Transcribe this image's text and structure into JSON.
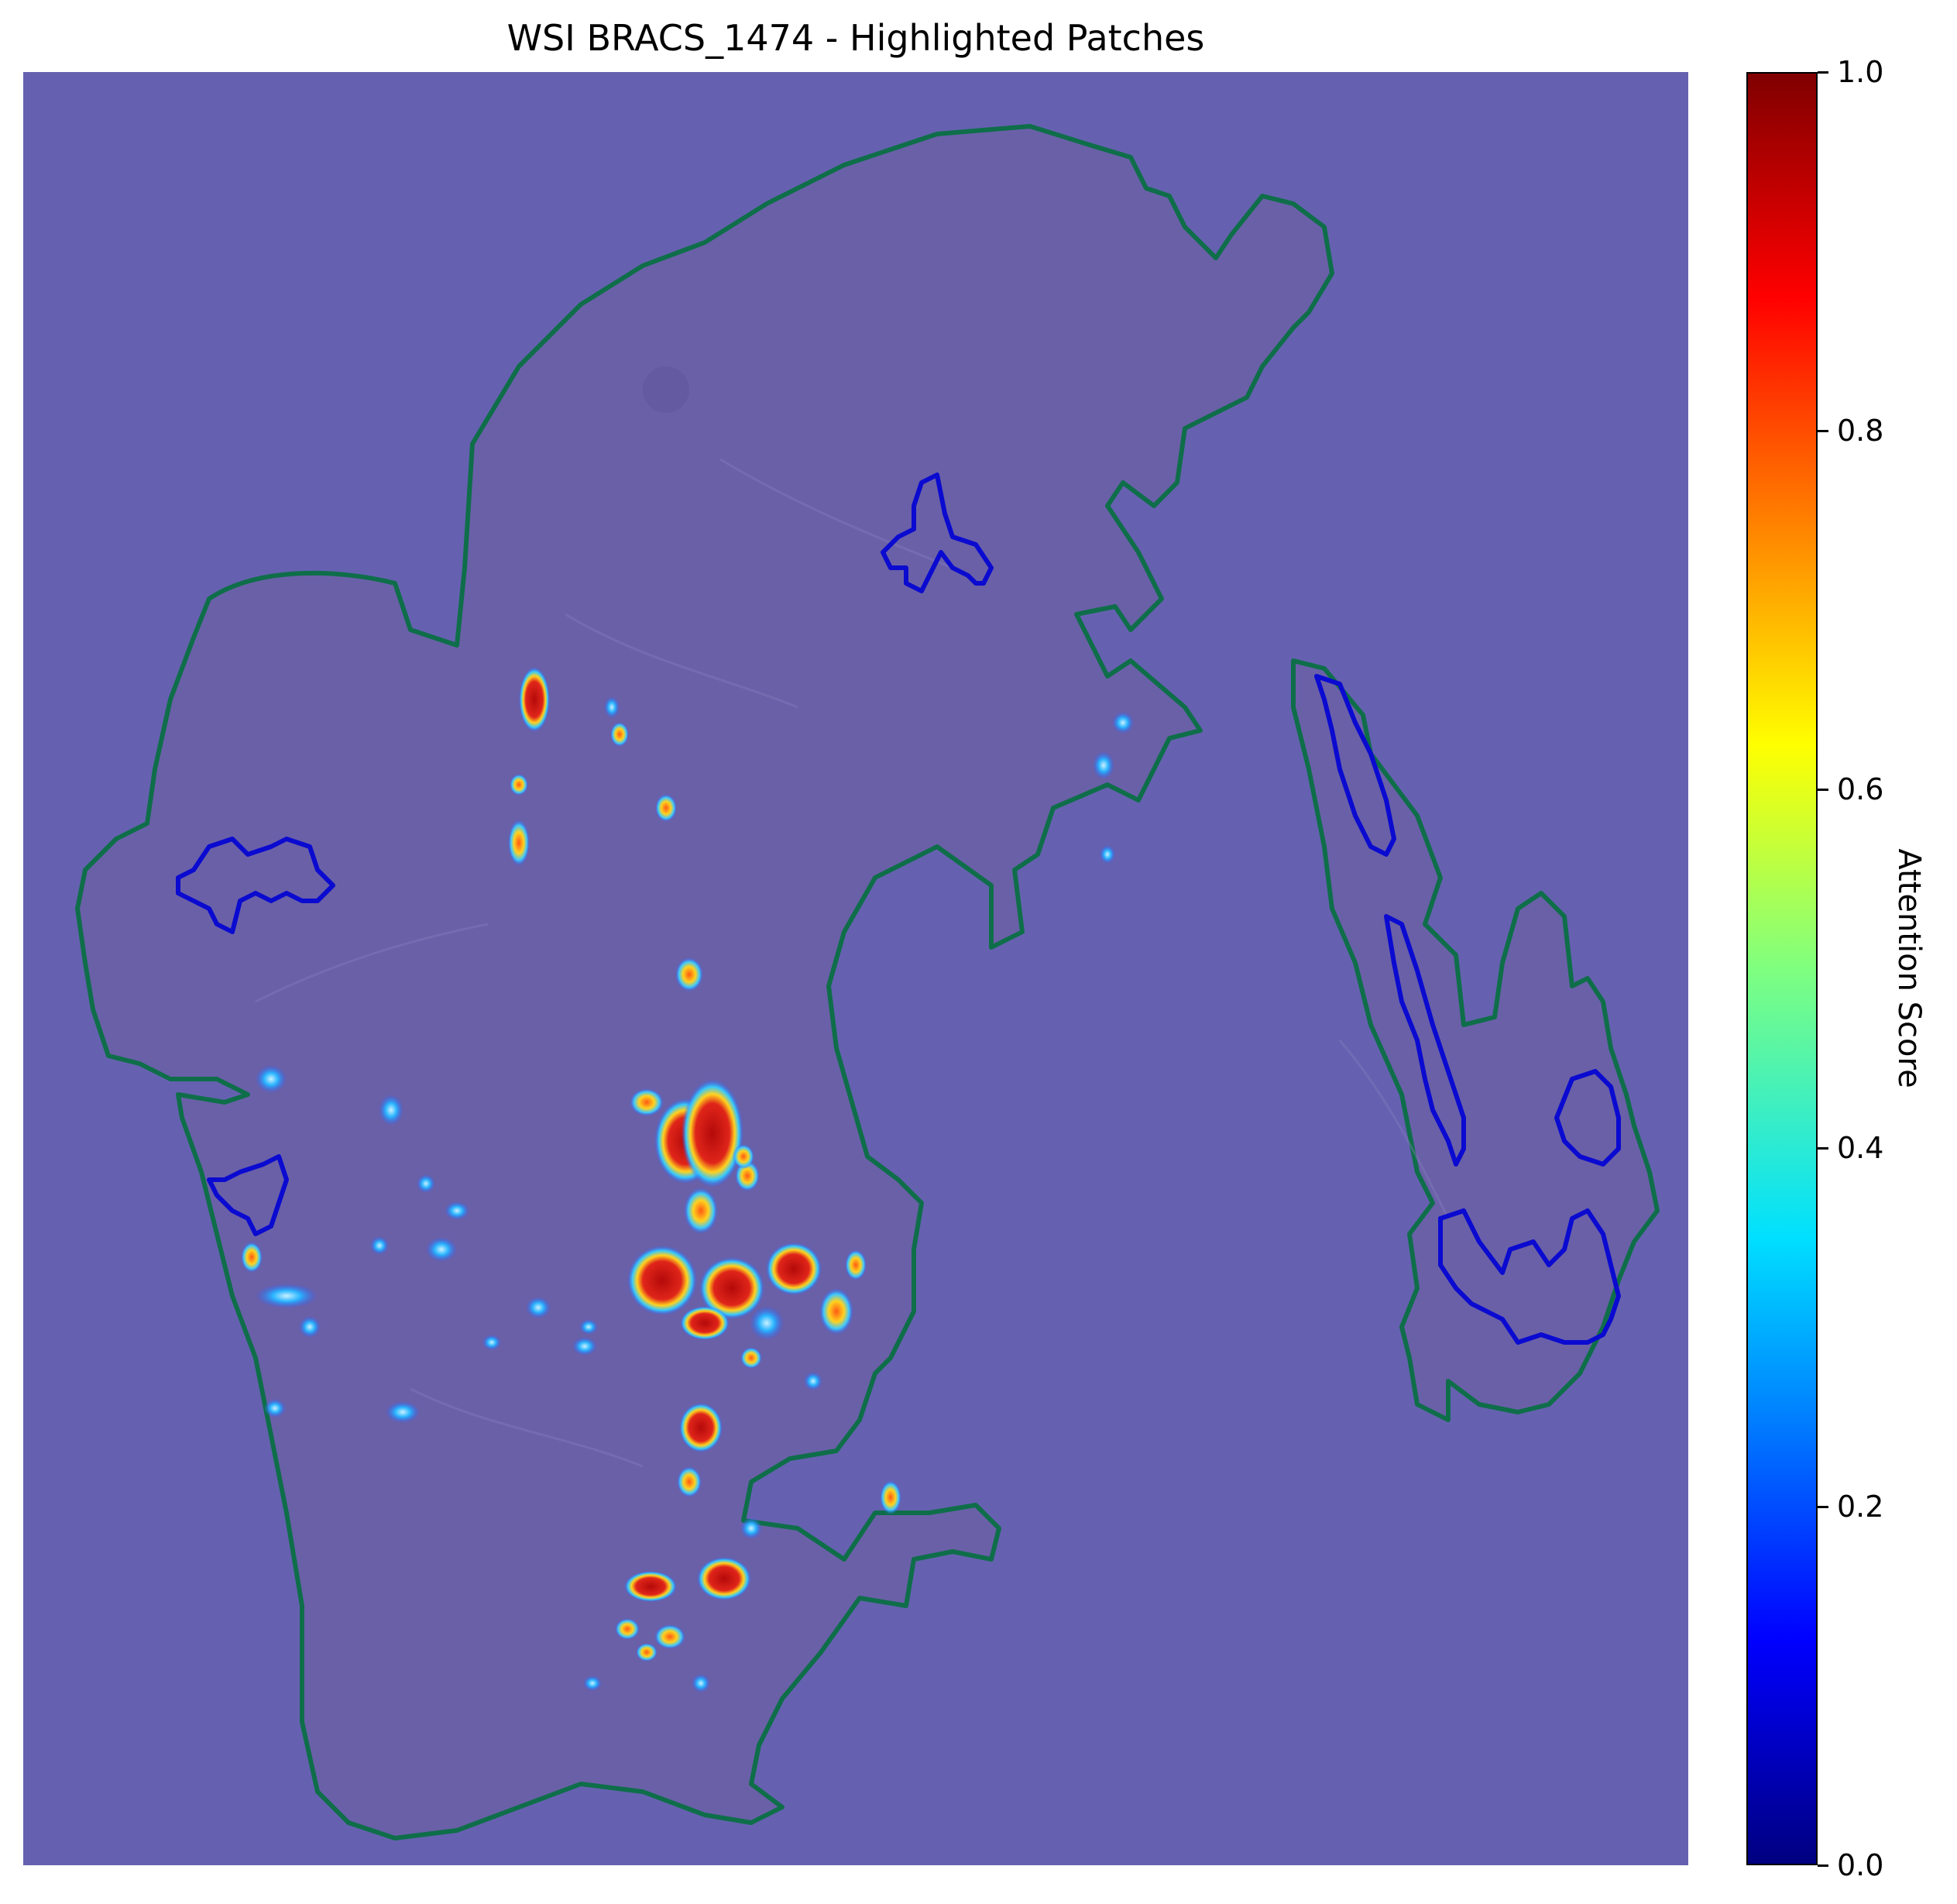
{
  "figure": {
    "title": "WSI BRACS_1474 - Highlighted Patches"
  },
  "colorbar": {
    "label": "Attention Score",
    "colormap": "jet",
    "range": [
      0.0,
      1.0
    ],
    "ticks": [
      {
        "value": 0.0,
        "label": "0.0"
      },
      {
        "value": 0.2,
        "label": "0.2"
      },
      {
        "value": 0.4,
        "label": "0.4"
      },
      {
        "value": 0.6,
        "label": "0.6"
      },
      {
        "value": 0.8,
        "label": "0.8"
      },
      {
        "value": 1.0,
        "label": "1.0"
      }
    ]
  },
  "colors": {
    "background_overlay": "#6561b0",
    "tissue_region": "#6a60a8",
    "tissue_outline": "#0f6e4a",
    "annotation_outline": "#0a0ad0",
    "hotspot_high": "#c40f0f",
    "hotspot_mid": "#ffd21e",
    "hotspot_low": "#28b4ff"
  }
}
